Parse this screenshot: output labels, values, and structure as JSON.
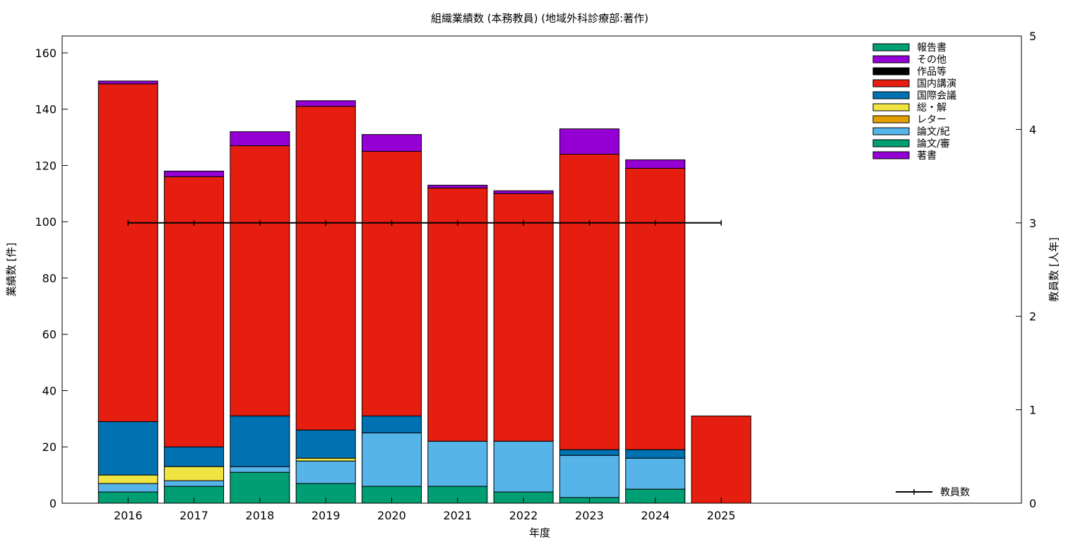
{
  "chart_data": {
    "type": "bar",
    "stacked": true,
    "title": "組織業績数 (本務教員) (地域外科診療部:著作)",
    "xlabel": "年度",
    "ylabel": "業績数 [件]",
    "y2label": "教員数 [人年]",
    "ylim": [
      0,
      166
    ],
    "y2lim": [
      0,
      5
    ],
    "yticks": [
      "0",
      "20",
      "40",
      "60",
      "80",
      "100",
      "120",
      "140",
      "160"
    ],
    "y2ticks": [
      "0",
      "1",
      "2",
      "3",
      "4",
      "5"
    ],
    "categories": [
      "2016",
      "2017",
      "2018",
      "2019",
      "2020",
      "2021",
      "2022",
      "2023",
      "2024",
      "2025"
    ],
    "series": [
      {
        "name": "報告書",
        "color": "#009e73",
        "values": [
          4,
          6,
          11,
          7,
          6,
          6,
          4,
          2,
          5,
          0
        ]
      },
      {
        "name": "その他",
        "color": "#9400d3",
        "values": [
          0,
          0,
          0,
          0,
          0,
          0,
          0,
          0,
          0,
          0
        ]
      },
      {
        "name": "作品等",
        "color": "#000000",
        "values": [
          0,
          0,
          0,
          0,
          0,
          0,
          0,
          0,
          0,
          0
        ]
      },
      {
        "name": "国内講演",
        "color": "#e51e10",
        "values": [
          120,
          96,
          96,
          115,
          94,
          90,
          88,
          105,
          100,
          31
        ]
      },
      {
        "name": "国際会議",
        "color": "#0072b2",
        "values": [
          19,
          7,
          18,
          10,
          6,
          0,
          0,
          2,
          3,
          0
        ]
      },
      {
        "name": "総・解",
        "color": "#f0e442",
        "values": [
          3,
          5,
          0,
          1,
          0,
          0,
          0,
          0,
          0,
          0
        ]
      },
      {
        "name": "レター",
        "color": "#e69f00",
        "values": [
          0,
          0,
          0,
          0,
          0,
          0,
          0,
          0,
          0,
          0
        ]
      },
      {
        "name": "論文/紀",
        "color": "#56b4e9",
        "values": [
          3,
          2,
          2,
          8,
          19,
          16,
          18,
          15,
          11,
          0
        ]
      },
      {
        "name": "論文/審",
        "color": "#009e73",
        "values": [
          0,
          0,
          0,
          0,
          0,
          0,
          0,
          0,
          0,
          0
        ]
      },
      {
        "name": "著書",
        "color": "#9400d3",
        "values": [
          1,
          2,
          5,
          2,
          6,
          1,
          1,
          9,
          3,
          0
        ]
      }
    ],
    "stack_order": [
      "報告書",
      "論文/審",
      "論文/紀",
      "レター",
      "総・解",
      "国際会議",
      "国内講演",
      "作品等",
      "その他",
      "著書"
    ],
    "line": {
      "name": "教員数",
      "axis": "y2",
      "values": [
        3,
        3,
        3,
        3,
        3,
        3,
        3,
        3,
        3,
        3
      ]
    },
    "grid": false,
    "legend_position": "top-right"
  }
}
